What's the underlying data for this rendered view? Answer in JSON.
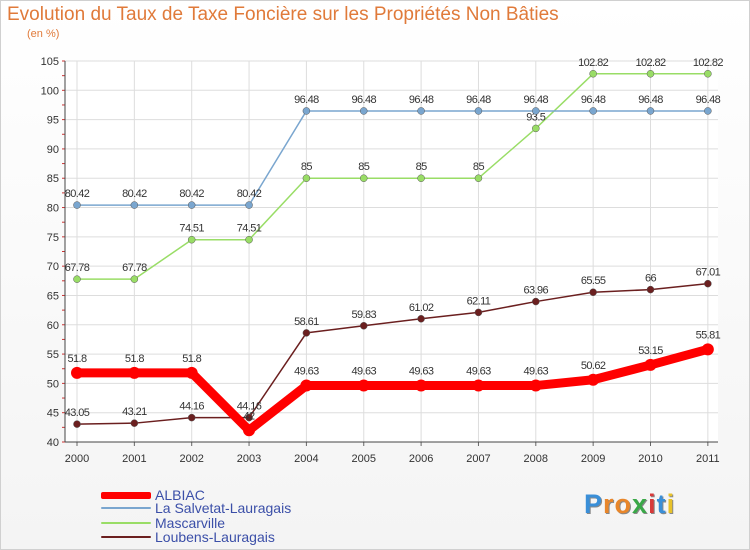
{
  "chart_data": {
    "type": "line",
    "title": "Evolution du Taux de Taxe Foncière sur les Propriétés Non Bâties",
    "subtitle": "(en %)",
    "xlabel": "",
    "ylabel": "(en %)",
    "ylim": [
      40,
      105
    ],
    "yticks": [
      40,
      45,
      50,
      55,
      60,
      65,
      70,
      75,
      80,
      85,
      90,
      95,
      100,
      105
    ],
    "grid": true,
    "legend_position": "bottom-left",
    "categories": [
      "2000",
      "2001",
      "2002",
      "2003",
      "2004",
      "2005",
      "2006",
      "2007",
      "2008",
      "2009",
      "2010",
      "2011"
    ],
    "series": [
      {
        "name": "Loubens-Lauragais",
        "color": "#6b1f1f",
        "values": [
          43.05,
          43.21,
          44.16,
          44.16,
          58.61,
          59.83,
          61.02,
          62.11,
          63.96,
          65.55,
          66,
          67.01
        ],
        "labels": [
          "43.05",
          "43.21",
          "44.16",
          "44.16",
          "58.61",
          "59.83",
          "61.02",
          "62.11",
          "63.96",
          "65.55",
          "66",
          "67.01"
        ]
      },
      {
        "name": "Mascarville",
        "color": "#99dd66",
        "values": [
          67.78,
          67.78,
          74.51,
          74.51,
          85,
          85,
          85,
          85,
          93.5,
          102.82,
          102.82,
          102.82
        ],
        "labels": [
          "67.78",
          "67.78",
          "74.51",
          "74.51",
          "85",
          "85",
          "85",
          "85",
          "93.5",
          "102.82",
          "102.82",
          "102.82"
        ]
      },
      {
        "name": "La Salvetat-Lauragais",
        "color": "#7aa6cf",
        "values": [
          80.42,
          80.42,
          80.42,
          80.42,
          96.48,
          96.48,
          96.48,
          96.48,
          96.48,
          96.48,
          96.48,
          96.48
        ],
        "labels": [
          "80.42",
          "80.42",
          "80.42",
          "80.42",
          "96.48",
          "96.48",
          "96.48",
          "96.48",
          "96.48",
          "96.48",
          "96.48",
          "96.48"
        ]
      },
      {
        "name": "ALBIAC",
        "color": "#ff0000",
        "values": [
          51.8,
          51.8,
          51.8,
          42,
          49.63,
          49.63,
          49.63,
          49.63,
          49.63,
          50.62,
          53.15,
          55.81
        ],
        "labels": [
          "51.8",
          "51.8",
          "51.8",
          "42",
          "49.63",
          "49.63",
          "49.63",
          "49.63",
          "49.63",
          "50.62",
          "53.15",
          "55.81"
        ]
      }
    ],
    "legend": [
      "ALBIAC",
      "La Salvetat-Lauragais",
      "Mascarville",
      "Loubens-Lauragais"
    ]
  },
  "logo_text": "Proxiti",
  "colors": {
    "title": "#e07a3a",
    "legend_text": "#3b4fa8",
    "grid": "#dddddd"
  }
}
